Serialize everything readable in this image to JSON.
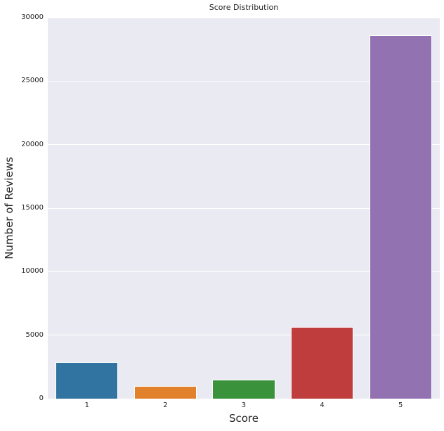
{
  "chart_data": {
    "type": "bar",
    "title": "Score Distribution",
    "xlabel": "Score",
    "ylabel": "Number of Reviews",
    "categories": [
      "1",
      "2",
      "3",
      "4",
      "5"
    ],
    "values": [
      2900,
      1000,
      1480,
      5650,
      28600
    ],
    "bar_colors": [
      "#3274a1",
      "#e1812c",
      "#3a923a",
      "#c03d3e",
      "#9372b2"
    ],
    "ylim": [
      0,
      30000
    ],
    "yticks": [
      0,
      5000,
      10000,
      15000,
      20000,
      25000,
      30000
    ],
    "ytick_labels": [
      "0",
      "5000",
      "10000",
      "15000",
      "20000",
      "25000",
      "30000"
    ],
    "grid": true,
    "legend": false,
    "plot_bg_color": "#eaeaf2",
    "grid_color": "#ffffff",
    "text_color": "#262626",
    "figure_bg_color": "#ffffff"
  }
}
